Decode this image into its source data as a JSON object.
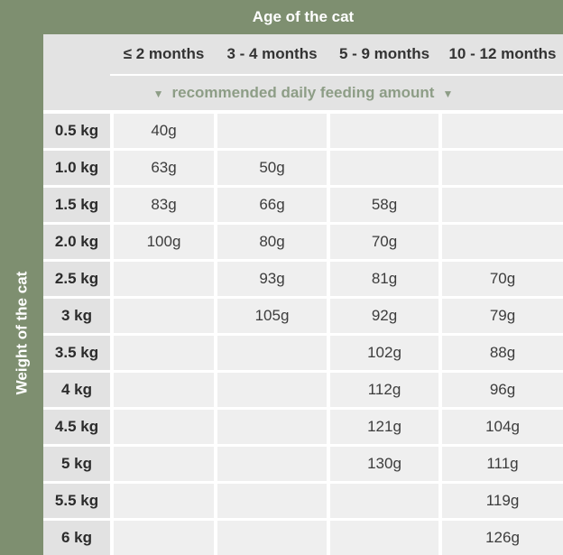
{
  "header": {
    "title": "Age of the cat"
  },
  "side": {
    "label": "Weight of the cat"
  },
  "subheader": {
    "arrow_left": "▼",
    "label": "recommended daily feeding amount",
    "arrow_right": "▼"
  },
  "colors": {
    "background_green": "#7E8F70",
    "header_gray": "#E3E3E3",
    "row_header_gray": "#E2E2E2",
    "cell_gray": "#EFEFEF",
    "accent_green_text": "#8D9D86",
    "text_dark": "#333333",
    "white": "#FFFFFF"
  },
  "chart_data": {
    "type": "table",
    "title": "Age of the cat",
    "col_axis_label": "Age of the cat",
    "row_axis_label": "Weight of the cat",
    "subtitle": "recommended daily feeding amount",
    "columns": [
      "≤ 2 months",
      "3 - 4 months",
      "5 - 9 months",
      "10 - 12 months"
    ],
    "rows": [
      {
        "weight": "0.5 kg",
        "values": [
          "40g",
          "",
          "",
          ""
        ]
      },
      {
        "weight": "1.0 kg",
        "values": [
          "63g",
          "50g",
          "",
          ""
        ]
      },
      {
        "weight": "1.5 kg",
        "values": [
          "83g",
          "66g",
          "58g",
          ""
        ]
      },
      {
        "weight": "2.0 kg",
        "values": [
          "100g",
          "80g",
          "70g",
          ""
        ]
      },
      {
        "weight": "2.5 kg",
        "values": [
          "",
          "93g",
          "81g",
          "70g"
        ]
      },
      {
        "weight": "3 kg",
        "values": [
          "",
          "105g",
          "92g",
          "79g"
        ]
      },
      {
        "weight": "3.5 kg",
        "values": [
          "",
          "",
          "102g",
          "88g"
        ]
      },
      {
        "weight": "4 kg",
        "values": [
          "",
          "",
          "112g",
          "96g"
        ]
      },
      {
        "weight": "4.5 kg",
        "values": [
          "",
          "",
          "121g",
          "104g"
        ]
      },
      {
        "weight": "5 kg",
        "values": [
          "",
          "",
          "130g",
          "111g"
        ]
      },
      {
        "weight": "5.5 kg",
        "values": [
          "",
          "",
          "",
          "119g"
        ]
      },
      {
        "weight": "6 kg",
        "values": [
          "",
          "",
          "",
          "126g"
        ]
      }
    ]
  }
}
